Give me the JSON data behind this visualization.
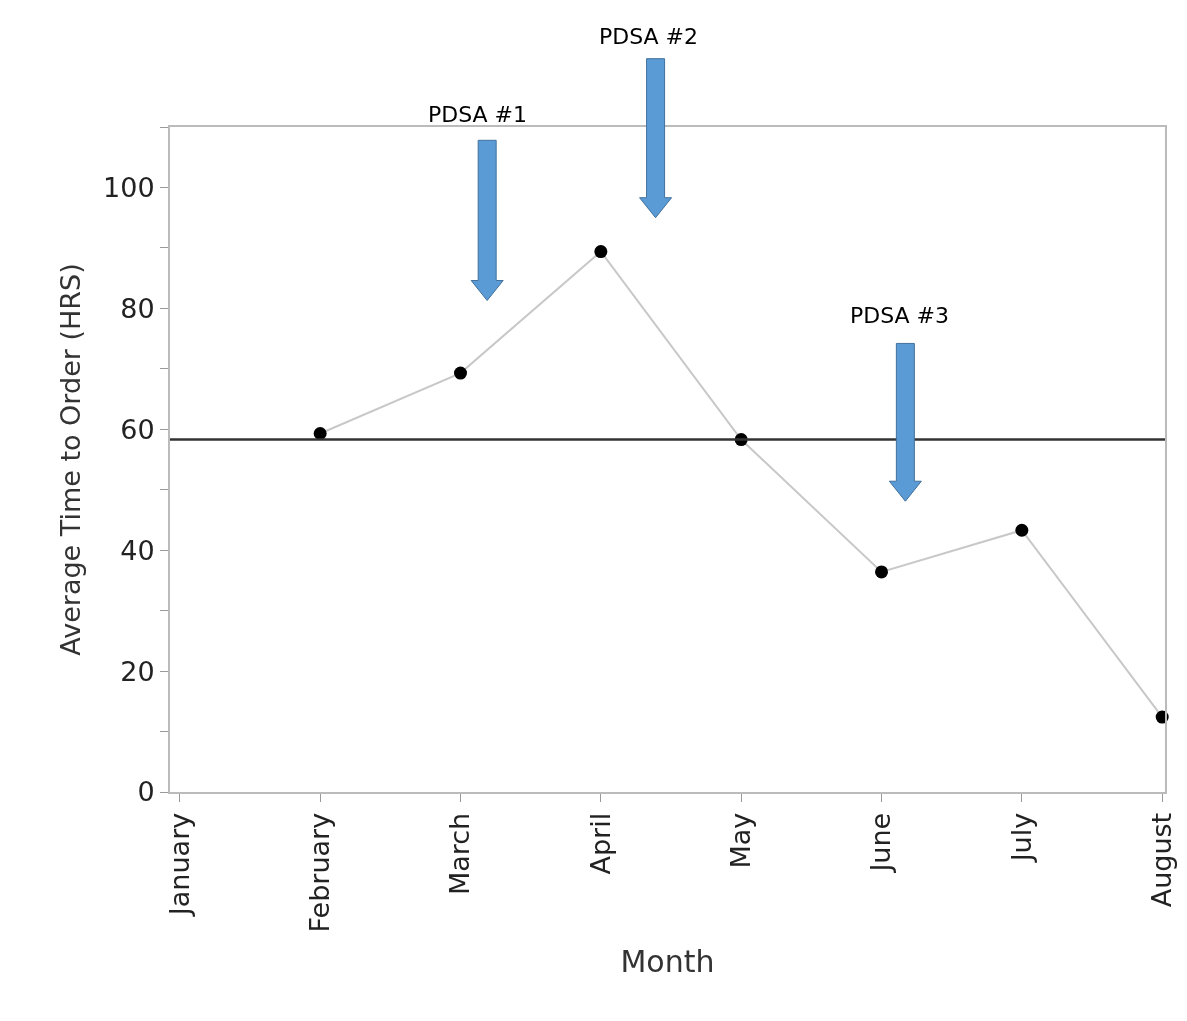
{
  "chart_data": {
    "type": "line",
    "xlabel": "Month",
    "ylabel": "Average Time to Order (HRS)",
    "categories": [
      "January",
      "February",
      "March",
      "April",
      "May",
      "June",
      "July",
      "August"
    ],
    "series": [
      {
        "color": "#c8c8c8",
        "values": [
          null,
          59.3,
          69.3,
          89.4,
          58.3,
          36.4,
          43.3,
          12.4
        ]
      }
    ],
    "marker": "circle",
    "line_style": "solid",
    "grid": false,
    "ylim": [
      0,
      110
    ],
    "yticks": [
      0,
      {
        "value": 10,
        "label": null
      },
      20,
      {
        "value": 30,
        "label": null
      },
      40,
      {
        "value": 50,
        "label": null
      },
      60,
      {
        "value": 70,
        "label": null
      },
      80,
      {
        "value": 90,
        "label": null
      },
      100,
      {
        "value": 110,
        "label": null
      }
    ],
    "ref_lines": [
      {
        "axis": "y",
        "value": 58.3,
        "color": "#333333",
        "line_style": "solid"
      }
    ],
    "annotations": [
      "PDSA #1",
      "PDSA #2",
      "PDSA #3"
    ]
  }
}
